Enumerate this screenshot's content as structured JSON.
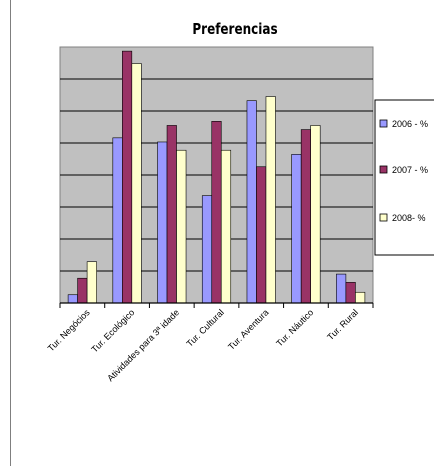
{
  "chart_data": {
    "type": "bar",
    "title": "Preferencias",
    "categories": [
      "Tur. Negócios",
      "Tur. Ecológico",
      "Atividades para 3ª idade",
      "Tur. Cultural",
      "Tur. Aventura",
      "Tur. Náutico",
      "Tur. Rural"
    ],
    "series": [
      {
        "name": "2006 - %",
        "color": "#9999ff",
        "values": [
          1,
          20,
          19.5,
          13,
          24.5,
          18,
          3.5
        ]
      },
      {
        "name": "2007 - %",
        "color": "#993366",
        "values": [
          3,
          30.5,
          21.5,
          22,
          16.5,
          21,
          2.5
        ]
      },
      {
        "name": "2008- %",
        "color": "#ffffcc",
        "values": [
          5,
          29,
          18.5,
          18.5,
          25,
          21.5,
          1.3
        ]
      }
    ],
    "ylim": [
      0,
      31
    ],
    "grid": true,
    "legend_position": "right"
  },
  "colors": {
    "plot_area": "#c0c0c0",
    "grid": "#000000",
    "axis": "#000000"
  }
}
